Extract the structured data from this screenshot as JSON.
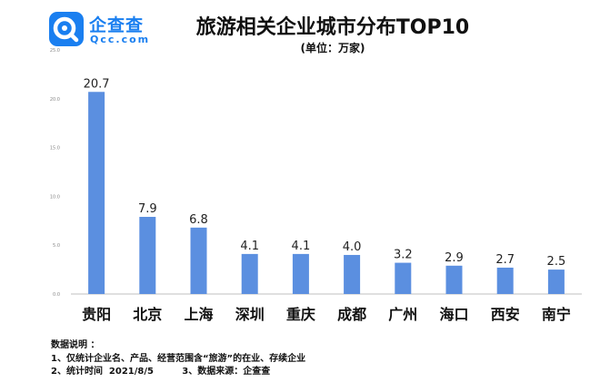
{
  "logo": {
    "name": "企查查",
    "url": "Qcc.com",
    "color": "#1a7ff0"
  },
  "chart_data": {
    "type": "bar",
    "title": "旅游相关企业城市分布TOP10",
    "subtitle": "(单位：万家)",
    "categories": [
      "贵阳",
      "北京",
      "上海",
      "深圳",
      "重庆",
      "成都",
      "广州",
      "海口",
      "西安",
      "南宁"
    ],
    "values": [
      20.7,
      7.9,
      6.8,
      4.1,
      4.1,
      4.0,
      3.2,
      2.9,
      2.7,
      2.5
    ],
    "data_labels": [
      "20.7",
      "7.9",
      "6.8",
      "4.1",
      "4.1",
      "4.0",
      "3.2",
      "2.9",
      "2.7",
      "2.5"
    ],
    "yticks": [
      "0.0",
      "5.0",
      "10.0",
      "15.0",
      "20.0",
      "25.0"
    ],
    "ylim": [
      0,
      25
    ],
    "grid": false,
    "bar_color": "#5b8fe0",
    "axis_color": "#bfbfbf"
  },
  "notes": {
    "heading": "数据说明 ：",
    "line1": "1、仅统计企业名、产品、经营范围含“旅游”的在业、存续企业",
    "line2": "2、统计时间  2021/8/5         3、数据来源：企查查"
  }
}
